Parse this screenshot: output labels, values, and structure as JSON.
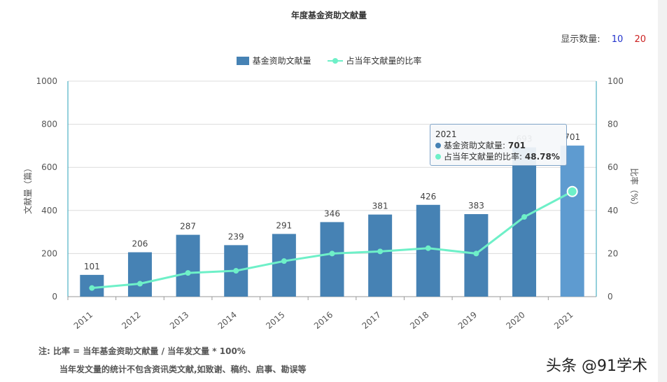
{
  "chart_data": {
    "type": "bar+line",
    "title": "年度基金资助文献量",
    "categories": [
      "2011",
      "2012",
      "2013",
      "2014",
      "2015",
      "2016",
      "2017",
      "2018",
      "2019",
      "2020",
      "2021"
    ],
    "series": [
      {
        "name": "基金资助文献量",
        "type": "bar",
        "axis": "left",
        "color": "#4682b4",
        "values": [
          101,
          206,
          287,
          239,
          291,
          346,
          381,
          426,
          383,
          693,
          701
        ]
      },
      {
        "name": "占当年文献量的比率",
        "type": "line",
        "axis": "right",
        "color": "#6ef0c8",
        "values": [
          4,
          6,
          11,
          12,
          16.5,
          20,
          21,
          22.5,
          20,
          37,
          48.78
        ]
      }
    ],
    "ylabel": "文献量（篇）",
    "ylim": [
      0,
      1000
    ],
    "yticks": [
      "0",
      "200",
      "400",
      "600",
      "800",
      "1000"
    ],
    "y2label": "比率（%）",
    "y2lim": [
      0,
      100
    ],
    "y2ticks": [
      "0",
      "20",
      "40",
      "60",
      "80",
      "100"
    ],
    "grid": true,
    "legend": "top-center",
    "highlight_index": 10
  },
  "display_count": {
    "label": "显示数量:",
    "options": [
      "10",
      "20"
    ]
  },
  "tooltip": {
    "title": "2021",
    "rows": [
      {
        "label": "基金资助文献量:",
        "value": "701"
      },
      {
        "label": "占当年文献量的比率:",
        "value": "48.78%"
      }
    ]
  },
  "notes": {
    "line1": "注:  比率 = 当年基金资助文献量 / 当年发文量 * 100%",
    "line2": "当年发文量的统计不包含资讯类文献,如致谢、稿约、启事、勘误等"
  },
  "watermark": "头条 @91学术"
}
